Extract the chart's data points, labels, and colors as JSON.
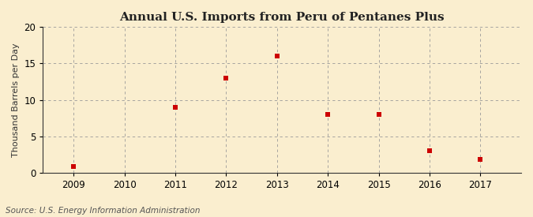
{
  "title": "Annual U.S. Imports from Peru of Pentanes Plus",
  "ylabel": "Thousand Barrels per Day",
  "source": "Source: U.S. Energy Information Administration",
  "years": [
    2009,
    2011,
    2012,
    2013,
    2014,
    2015,
    2016,
    2017
  ],
  "values": [
    0.8,
    9.0,
    13.0,
    16.0,
    8.0,
    8.0,
    3.0,
    1.8
  ],
  "xlim": [
    2008.4,
    2017.8
  ],
  "ylim": [
    0,
    20
  ],
  "yticks": [
    0,
    5,
    10,
    15,
    20
  ],
  "xticks": [
    2009,
    2010,
    2011,
    2012,
    2013,
    2014,
    2015,
    2016,
    2017
  ],
  "marker_color": "#cc0000",
  "marker_size": 22,
  "grid_color": "#999999",
  "bg_color": "#faeecf",
  "plot_bg_color": "#f5f0e8",
  "title_fontsize": 11,
  "label_fontsize": 8,
  "tick_fontsize": 8.5,
  "source_fontsize": 7.5
}
